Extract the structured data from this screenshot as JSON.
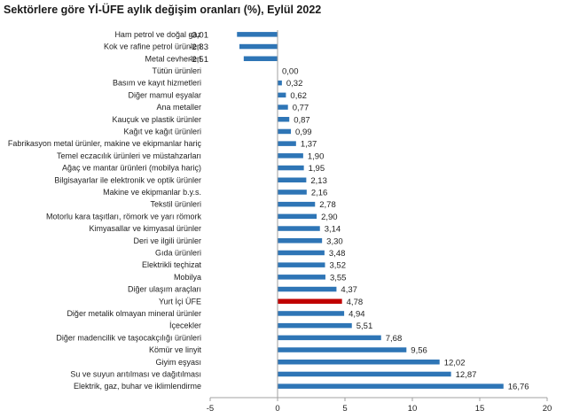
{
  "chart_data": {
    "type": "bar",
    "orientation": "horizontal",
    "title": "Sektörlere göre Yİ-ÜFE aylık değişim oranları (%), Eylül 2022",
    "xlabel": "",
    "ylabel": "",
    "xlim": [
      -5,
      20
    ],
    "xticks": [
      -5,
      0,
      5,
      10,
      15,
      20
    ],
    "xtick_labels": [
      "-5",
      "0",
      "5",
      "10",
      "15",
      "20"
    ],
    "grid": false,
    "legend": "none",
    "colors": {
      "default": "#2e75b6",
      "highlight": "#c00000"
    },
    "highlight_category": "Yurt İçi ÜFE",
    "categories": [
      "Ham petrol ve doğal gaz",
      "Kok ve rafine petrol ürünleri",
      "Metal cevherleri",
      "Tütün ürünleri",
      "Basım ve kayıt hizmetleri",
      "Diğer mamul eşyalar",
      "Ana metaller",
      "Kauçuk ve plastik ürünler",
      "Kağıt ve kağıt ürünleri",
      "Fabrikasyon metal ürünler, makine ve ekipmanlar hariç",
      "Temel eczacılık ürünleri ve müstahzarları",
      "Ağaç ve mantar ürünleri (mobilya hariç)",
      "Bilgisayarlar ile elektronik ve optik ürünler",
      "Makine ve ekipmanlar b.y.s.",
      "Tekstil ürünleri",
      "Motorlu kara taşıtları, römork ve yarı römork",
      "Kimyasallar ve kimyasal ürünler",
      "Deri ve ilgili ürünler",
      "Gıda ürünleri",
      "Elektrikli teçhizat",
      "Mobilya",
      "Diğer ulaşım araçları",
      "Yurt İçi ÜFE",
      "Diğer metalik olmayan mineral ürünler",
      "İçecekler",
      "Diğer madencilik ve taşocakçılığı ürünleri",
      "Kömür ve linyit",
      "Giyim eşyası",
      "Su ve suyun arıtılması ve dağıtılması",
      "Elektrik, gaz, buhar ve iklimlendirme"
    ],
    "values": [
      -3.01,
      -2.83,
      -2.51,
      0.0,
      0.32,
      0.62,
      0.77,
      0.87,
      0.99,
      1.37,
      1.9,
      1.95,
      2.13,
      2.16,
      2.78,
      2.9,
      3.14,
      3.3,
      3.48,
      3.52,
      3.55,
      4.37,
      4.78,
      4.94,
      5.51,
      7.68,
      9.56,
      12.02,
      12.87,
      16.76
    ],
    "value_labels": [
      "-3,01",
      "-2,83",
      "-2,51",
      "0,00",
      "0,32",
      "0,62",
      "0,77",
      "0,87",
      "0,99",
      "1,37",
      "1,90",
      "1,95",
      "2,13",
      "2,16",
      "2,78",
      "2,90",
      "3,14",
      "3,30",
      "3,48",
      "3,52",
      "3,55",
      "4,37",
      "4,78",
      "4,94",
      "5,51",
      "7,68",
      "9,56",
      "12,02",
      "12,87",
      "16,76"
    ]
  }
}
